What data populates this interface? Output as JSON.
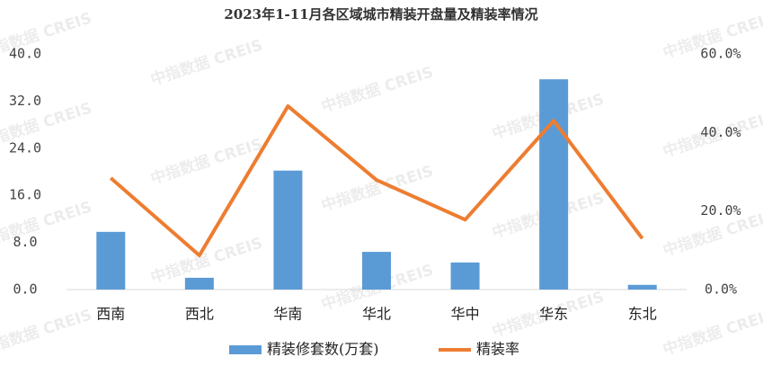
{
  "chart_data": {
    "type": "bar",
    "title": "2023年1-11月各区域城市精装开盘量及精装率情况",
    "watermark": "中指数据 CREIS",
    "categories": [
      "西南",
      "西北",
      "华南",
      "华北",
      "华中",
      "华东",
      "东北"
    ],
    "series": [
      {
        "name": "精装修套数(万套)",
        "type": "bar",
        "color": "#5b9bd5",
        "values": [
          9.8,
          2.0,
          20.2,
          6.4,
          4.6,
          35.7,
          0.8
        ]
      },
      {
        "name": "精装率",
        "type": "line",
        "axis": "y2",
        "color": "#ed7d31",
        "values": [
          28.4,
          8.7,
          46.7,
          27.9,
          17.8,
          43.0,
          13.0
        ]
      }
    ],
    "ylim": [
      0,
      40
    ],
    "yticks": [
      {
        "value": 0,
        "label": "0.0"
      },
      {
        "value": 8,
        "label": "8.0"
      },
      {
        "value": 16,
        "label": "16.0"
      },
      {
        "value": 24,
        "label": "24.0"
      },
      {
        "value": 32,
        "label": "32.0"
      },
      {
        "value": 40,
        "label": "40.0"
      }
    ],
    "y2lim": [
      0,
      60
    ],
    "y2ticks": [
      {
        "value": 0,
        "label": "0.0%"
      },
      {
        "value": 20,
        "label": "20.0%"
      },
      {
        "value": 40,
        "label": "40.0%"
      },
      {
        "value": 60,
        "label": "60.0%"
      }
    ],
    "grid": false,
    "legend": "bottom"
  }
}
